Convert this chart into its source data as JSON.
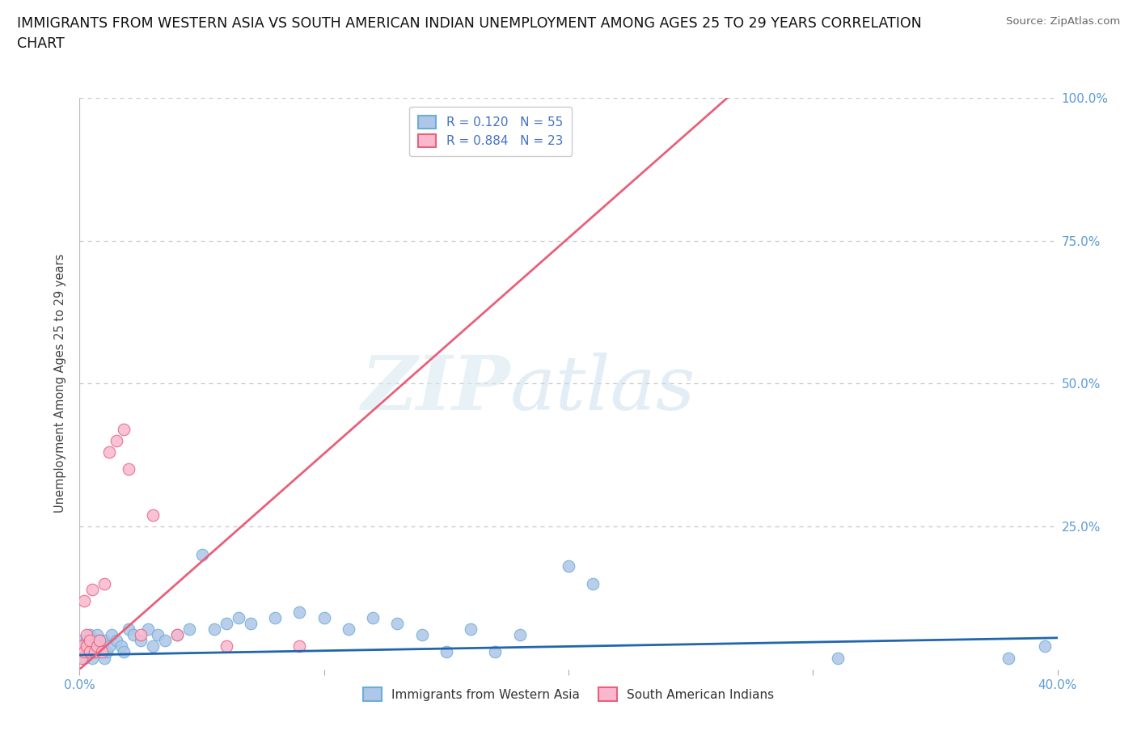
{
  "title_line1": "IMMIGRANTS FROM WESTERN ASIA VS SOUTH AMERICAN INDIAN UNEMPLOYMENT AMONG AGES 25 TO 29 YEARS CORRELATION",
  "title_line2": "CHART",
  "source": "Source: ZipAtlas.com",
  "ylabel": "Unemployment Among Ages 25 to 29 years",
  "xlim": [
    0.0,
    0.4
  ],
  "ylim": [
    0.0,
    1.0
  ],
  "blue_color": "#aec6e8",
  "pink_color": "#f9b8ce",
  "blue_line_color": "#2166ac",
  "pink_line_color": "#e8607a",
  "blue_edge_color": "#6baed6",
  "pink_edge_color": "#e8607a",
  "R_blue": 0.12,
  "N_blue": 55,
  "R_pink": 0.884,
  "N_pink": 23,
  "blue_x": [
    0.001,
    0.001,
    0.002,
    0.002,
    0.003,
    0.003,
    0.004,
    0.004,
    0.005,
    0.005,
    0.006,
    0.006,
    0.007,
    0.007,
    0.008,
    0.008,
    0.009,
    0.01,
    0.01,
    0.011,
    0.012,
    0.013,
    0.015,
    0.017,
    0.018,
    0.02,
    0.022,
    0.025,
    0.028,
    0.03,
    0.032,
    0.035,
    0.04,
    0.045,
    0.05,
    0.055,
    0.06,
    0.065,
    0.07,
    0.08,
    0.09,
    0.1,
    0.11,
    0.12,
    0.13,
    0.14,
    0.15,
    0.16,
    0.17,
    0.18,
    0.2,
    0.21,
    0.31,
    0.38,
    0.395
  ],
  "blue_y": [
    0.03,
    0.05,
    0.02,
    0.04,
    0.03,
    0.05,
    0.04,
    0.06,
    0.02,
    0.04,
    0.03,
    0.05,
    0.04,
    0.06,
    0.03,
    0.05,
    0.04,
    0.02,
    0.05,
    0.03,
    0.04,
    0.06,
    0.05,
    0.04,
    0.03,
    0.07,
    0.06,
    0.05,
    0.07,
    0.04,
    0.06,
    0.05,
    0.06,
    0.07,
    0.2,
    0.07,
    0.08,
    0.09,
    0.08,
    0.09,
    0.1,
    0.09,
    0.07,
    0.09,
    0.08,
    0.06,
    0.03,
    0.07,
    0.03,
    0.06,
    0.18,
    0.15,
    0.02,
    0.02,
    0.04
  ],
  "pink_x": [
    0.001,
    0.001,
    0.002,
    0.002,
    0.003,
    0.003,
    0.004,
    0.004,
    0.005,
    0.006,
    0.007,
    0.008,
    0.009,
    0.01,
    0.012,
    0.015,
    0.018,
    0.02,
    0.025,
    0.03,
    0.04,
    0.06,
    0.09
  ],
  "pink_y": [
    0.02,
    0.04,
    0.03,
    0.12,
    0.04,
    0.06,
    0.03,
    0.05,
    0.14,
    0.03,
    0.04,
    0.05,
    0.03,
    0.15,
    0.38,
    0.4,
    0.42,
    0.35,
    0.06,
    0.27,
    0.06,
    0.04,
    0.04
  ],
  "blue_line_x0": 0.0,
  "blue_line_x1": 0.4,
  "blue_line_y0": 0.025,
  "blue_line_y1": 0.055,
  "pink_line_x0": 0.0,
  "pink_line_x1": 0.265,
  "pink_line_y0": 0.0,
  "pink_line_y1": 1.0,
  "watermark_text": "ZIPatlas",
  "axis_label_color": "#5b9bd5",
  "grid_color": "#c8c8c8",
  "background": "#ffffff",
  "legend_text_color": "#4472c4"
}
